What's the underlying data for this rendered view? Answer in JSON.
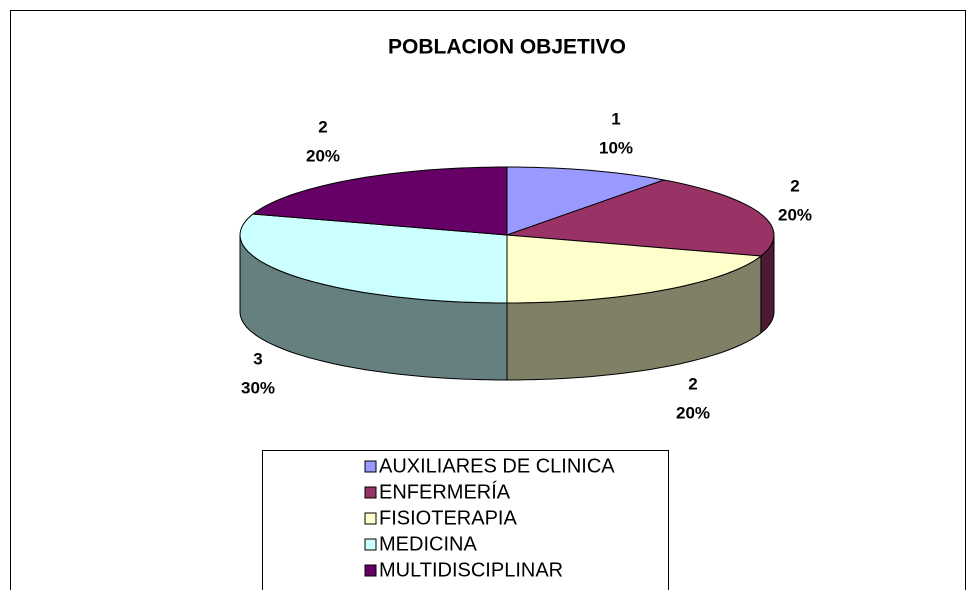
{
  "chart_data": {
    "type": "pie3d",
    "title": "POBLACION OBJETIVO",
    "categories": [
      "AUXILIARES DE CLINICA",
      "ENFERMERÍA",
      "FISIOTERAPIA",
      "MEDICINA",
      "MULTIDISCIPLINAR"
    ],
    "values": [
      1,
      2,
      2,
      3,
      2
    ],
    "percent_labels": [
      "10%",
      "20%",
      "20%",
      "30%",
      "20%"
    ],
    "colors": [
      "#9999ff",
      "#993366",
      "#ffffcc",
      "#ccffff",
      "#660066"
    ],
    "side_colors": [
      "#7a7acc",
      "#4d1a33",
      "#808066",
      "#668080",
      "#330033"
    ],
    "legend": "bottom"
  }
}
